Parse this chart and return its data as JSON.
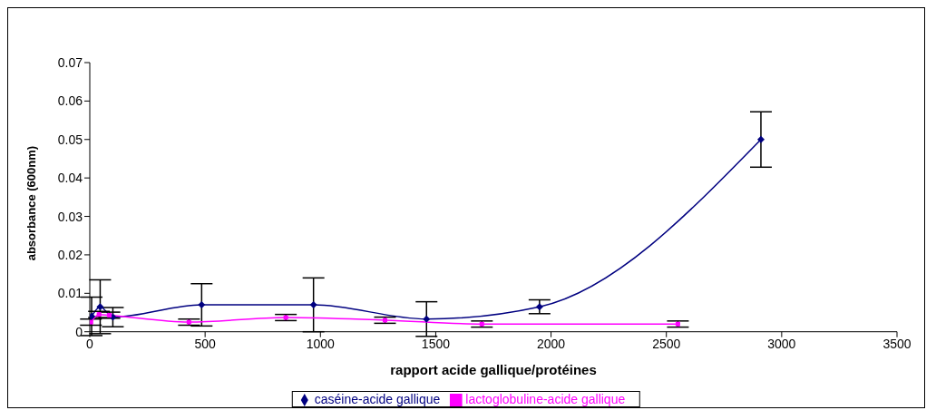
{
  "chart_data": {
    "type": "line",
    "xlabel": "rapport acide gallique/protéines",
    "ylabel": "absorbance (600nm)",
    "xlim": [
      0,
      3500
    ],
    "xticks": [
      0,
      500,
      1000,
      1500,
      2000,
      2500,
      3000,
      3500
    ],
    "ylim": [
      0,
      0.07
    ],
    "yticks": [
      0,
      0.01,
      0.02,
      0.03,
      0.04,
      0.05,
      0.06,
      0.07
    ],
    "grid": false,
    "legend": "bottom",
    "line_style": "solid",
    "series": [
      {
        "name": "caséine-acide gallique",
        "color": "#000080",
        "marker": "diamond",
        "x": [
          8,
          45,
          100,
          485,
          970,
          1460,
          1950,
          2910
        ],
        "values": [
          0.004,
          0.0065,
          0.0038,
          0.007,
          0.007,
          0.0033,
          0.0065,
          0.05
        ],
        "errors": [
          0.005,
          0.007,
          0.0025,
          0.0055,
          0.007,
          0.0045,
          0.0018,
          0.0072
        ]
      },
      {
        "name": "lactoglobuline-acide gallique",
        "color": "#ff00ff",
        "marker": "square",
        "x": [
          5,
          40,
          85,
          430,
          850,
          1280,
          1700,
          2550
        ],
        "values": [
          0.0025,
          0.0045,
          0.0043,
          0.0025,
          0.0037,
          0.003,
          0.002,
          0.002
        ],
        "errors": [
          0.0008,
          0.0008,
          0.0008,
          0.0008,
          0.0008,
          0.0008,
          0.0008,
          0.0008
        ]
      }
    ]
  }
}
